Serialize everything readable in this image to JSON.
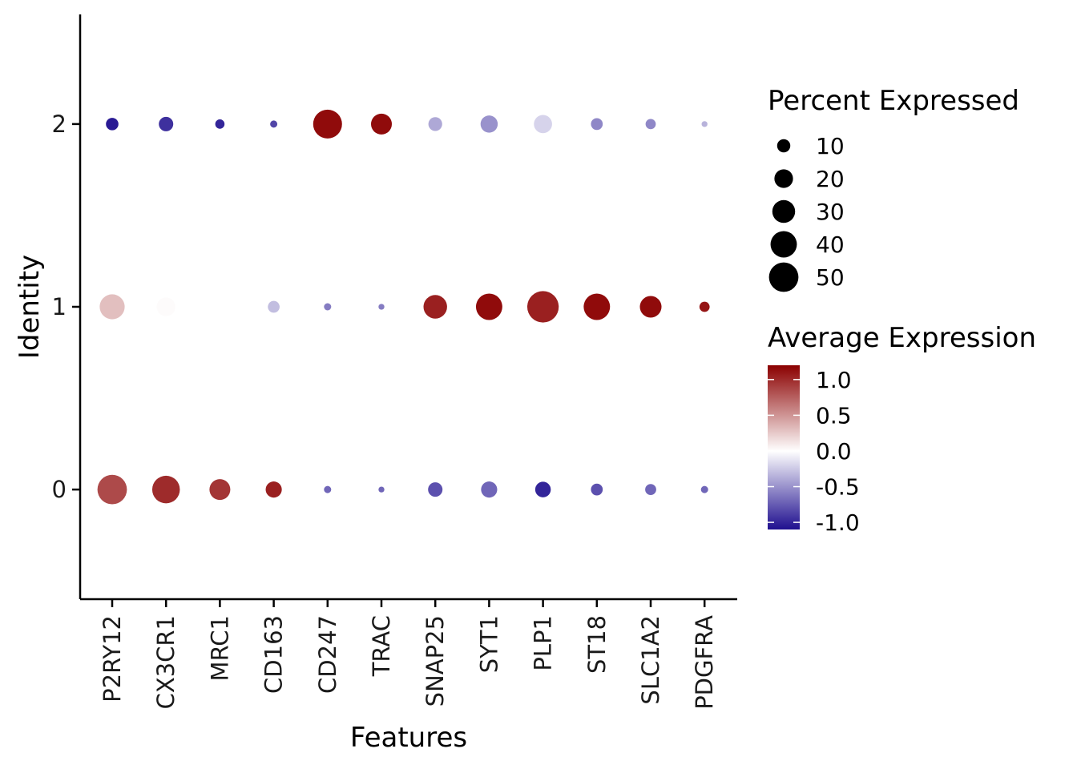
{
  "chart_data": {
    "type": "dot",
    "xlabel": "Features",
    "ylabel": "Identity",
    "categories": [
      "P2RY12",
      "CX3CR1",
      "MRC1",
      "CD163",
      "CD247",
      "TRAC",
      "SNAP25",
      "SYT1",
      "PLP1",
      "ST18",
      "SLC1A2",
      "PDGFRA"
    ],
    "identities": [
      "0",
      "1",
      "2"
    ],
    "ylim": [
      -0.6,
      2.6
    ],
    "y_ticks": [
      "0",
      "1",
      "2"
    ],
    "grid": false,
    "series": [
      {
        "identity": "0",
        "pct_expressed": [
          50,
          44,
          25,
          15,
          3,
          2,
          12,
          15,
          14,
          8,
          7,
          3
        ],
        "avg_expression": [
          0.85,
          1.0,
          0.95,
          1.05,
          -0.7,
          -0.7,
          -0.8,
          -0.7,
          -1.0,
          -0.8,
          -0.7,
          -0.7
        ]
      },
      {
        "identity": "1",
        "pct_expressed": [
          36,
          20,
          0,
          8,
          3,
          2,
          32,
          40,
          57,
          40,
          27,
          6
        ],
        "avg_expression": [
          0.3,
          0.02,
          null,
          -0.3,
          -0.6,
          -0.6,
          1.05,
          1.15,
          1.05,
          1.15,
          1.15,
          1.1
        ]
      },
      {
        "identity": "2",
        "pct_expressed": [
          9,
          12,
          5,
          3,
          48,
          25,
          11,
          17,
          19,
          8,
          6,
          2
        ],
        "avg_expression": [
          -1.05,
          -0.95,
          -1.0,
          -0.85,
          1.15,
          1.15,
          -0.4,
          -0.5,
          -0.2,
          -0.55,
          -0.55,
          -0.35
        ]
      }
    ],
    "size_legend": {
      "title": "Percent Expressed",
      "values": [
        10,
        20,
        30,
        40,
        50
      ],
      "labels": [
        "10",
        "20",
        "30",
        "40",
        "50"
      ]
    },
    "color_legend": {
      "title": "Average Expression",
      "range": [
        -1.1,
        1.2
      ],
      "ticks": [
        1.0,
        0.5,
        0.0,
        -0.5,
        -1.0
      ],
      "labels": [
        "1.0",
        "0.5",
        "0.0",
        "-0.5",
        "-1.0"
      ],
      "low_color": "#1f0f8f",
      "mid_color": "#ffffff",
      "high_color": "#8b0000"
    },
    "legend_placement": "right"
  }
}
